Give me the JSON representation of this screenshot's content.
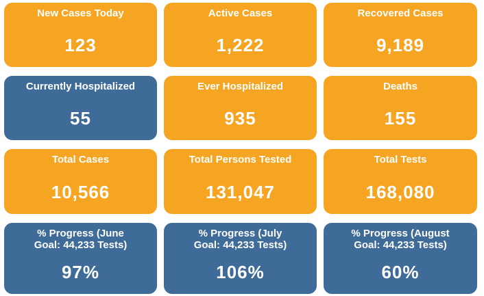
{
  "tiles": [
    {
      "label": "New Cases Today",
      "value": "123",
      "color": "#f6a522"
    },
    {
      "label": "Active Cases",
      "value": "1,222",
      "color": "#f6a522"
    },
    {
      "label": "Recovered Cases",
      "value": "9,189",
      "color": "#f6a522"
    },
    {
      "label": "Currently Hospitalized",
      "value": "55",
      "color": "#3f6b99"
    },
    {
      "label": "Ever Hospitalized",
      "value": "935",
      "color": "#f6a522"
    },
    {
      "label": "Deaths",
      "value": "155",
      "color": "#f6a522"
    },
    {
      "label": "Total Cases",
      "value": "10,566",
      "color": "#f6a522"
    },
    {
      "label": "Total Persons Tested",
      "value": "131,047",
      "color": "#f6a522"
    },
    {
      "label": "Total Tests",
      "value": "168,080",
      "color": "#f6a522"
    },
    {
      "label": "% Progress (June Goal: 44,233 Tests)",
      "value": "97%",
      "color": "#3f6b99"
    },
    {
      "label": "% Progress (July Goal: 44,233 Tests)",
      "value": "106%",
      "color": "#3f6b99"
    },
    {
      "label": "% Progress (August Goal: 44,233 Tests)",
      "value": "60%",
      "color": "#3f6b99"
    }
  ]
}
